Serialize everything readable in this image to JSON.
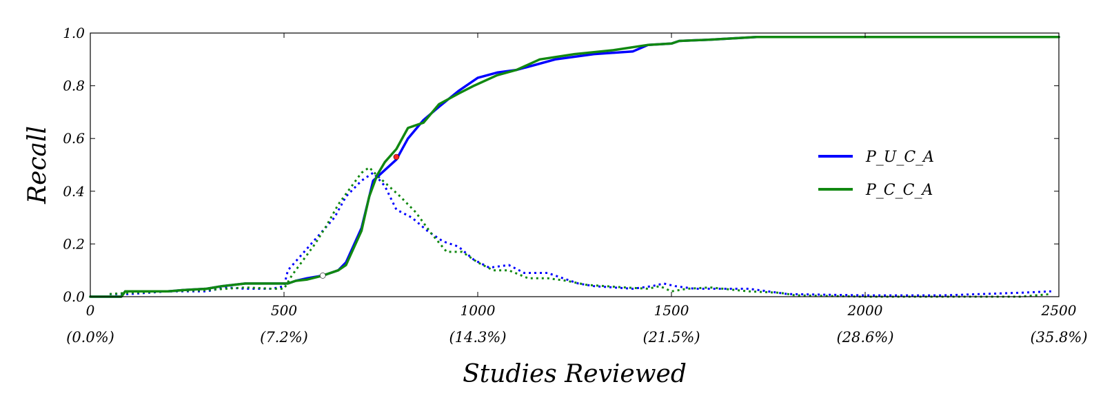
{
  "chart_data": {
    "type": "line",
    "xlabel": "Studies Reviewed",
    "ylabel": "Recall",
    "xlim": [
      0,
      2500
    ],
    "ylim": [
      0,
      1.0
    ],
    "x_ticks": [
      0,
      500,
      1000,
      1500,
      2000,
      2500
    ],
    "x_tick_labels": [
      "0",
      "500",
      "1000",
      "1500",
      "2000",
      "2500"
    ],
    "x_tick_percent_labels": [
      "(0.0%)",
      "(7.2%)",
      "(14.3%)",
      "(21.5%)",
      "(28.6%)",
      "(35.8%)"
    ],
    "y_ticks": [
      0.0,
      0.2,
      0.4,
      0.6,
      0.8,
      1.0
    ],
    "y_tick_labels": [
      "0.0",
      "0.2",
      "0.4",
      "0.6",
      "0.8",
      "1.0"
    ],
    "grid": false,
    "legend_position": "right",
    "series": [
      {
        "name": "P_U_C_A",
        "color": "#0000ff",
        "style": "solid",
        "points": [
          [
            0,
            0
          ],
          [
            80,
            0
          ],
          [
            90,
            0.02
          ],
          [
            200,
            0.02
          ],
          [
            240,
            0.025
          ],
          [
            300,
            0.03
          ],
          [
            340,
            0.04
          ],
          [
            400,
            0.05
          ],
          [
            510,
            0.05
          ],
          [
            530,
            0.06
          ],
          [
            560,
            0.07
          ],
          [
            600,
            0.08
          ],
          [
            640,
            0.1
          ],
          [
            660,
            0.13
          ],
          [
            700,
            0.26
          ],
          [
            730,
            0.44
          ],
          [
            760,
            0.48
          ],
          [
            790,
            0.52
          ],
          [
            820,
            0.6
          ],
          [
            860,
            0.67
          ],
          [
            900,
            0.72
          ],
          [
            950,
            0.78
          ],
          [
            1000,
            0.83
          ],
          [
            1050,
            0.85
          ],
          [
            1100,
            0.86
          ],
          [
            1150,
            0.88
          ],
          [
            1200,
            0.9
          ],
          [
            1300,
            0.92
          ],
          [
            1400,
            0.93
          ],
          [
            1440,
            0.955
          ],
          [
            1500,
            0.96
          ],
          [
            1520,
            0.97
          ],
          [
            1600,
            0.975
          ],
          [
            1720,
            0.985
          ],
          [
            2500,
            0.985
          ]
        ]
      },
      {
        "name": "P_C_C_A",
        "color": "#118811",
        "style": "solid",
        "points": [
          [
            0,
            0
          ],
          [
            80,
            0
          ],
          [
            90,
            0.02
          ],
          [
            200,
            0.02
          ],
          [
            240,
            0.025
          ],
          [
            300,
            0.03
          ],
          [
            340,
            0.04
          ],
          [
            400,
            0.05
          ],
          [
            510,
            0.05
          ],
          [
            530,
            0.06
          ],
          [
            560,
            0.065
          ],
          [
            600,
            0.08
          ],
          [
            640,
            0.1
          ],
          [
            660,
            0.12
          ],
          [
            700,
            0.25
          ],
          [
            720,
            0.38
          ],
          [
            740,
            0.46
          ],
          [
            760,
            0.51
          ],
          [
            790,
            0.56
          ],
          [
            820,
            0.64
          ],
          [
            860,
            0.66
          ],
          [
            900,
            0.73
          ],
          [
            950,
            0.77
          ],
          [
            990,
            0.8
          ],
          [
            1050,
            0.84
          ],
          [
            1100,
            0.86
          ],
          [
            1160,
            0.9
          ],
          [
            1250,
            0.92
          ],
          [
            1350,
            0.935
          ],
          [
            1440,
            0.955
          ],
          [
            1500,
            0.96
          ],
          [
            1520,
            0.97
          ],
          [
            1600,
            0.975
          ],
          [
            1720,
            0.985
          ],
          [
            2500,
            0.985
          ]
        ]
      },
      {
        "color": "#0000ff",
        "style": "dotted",
        "points": [
          [
            50,
            0.01
          ],
          [
            100,
            0.01
          ],
          [
            150,
            0.015
          ],
          [
            200,
            0.02
          ],
          [
            300,
            0.02
          ],
          [
            350,
            0.035
          ],
          [
            400,
            0.03
          ],
          [
            470,
            0.03
          ],
          [
            500,
            0.04
          ],
          [
            510,
            0.1
          ],
          [
            540,
            0.15
          ],
          [
            570,
            0.2
          ],
          [
            600,
            0.25
          ],
          [
            630,
            0.3
          ],
          [
            660,
            0.38
          ],
          [
            700,
            0.44
          ],
          [
            730,
            0.47
          ],
          [
            760,
            0.42
          ],
          [
            790,
            0.33
          ],
          [
            830,
            0.3
          ],
          [
            870,
            0.25
          ],
          [
            910,
            0.21
          ],
          [
            950,
            0.19
          ],
          [
            990,
            0.14
          ],
          [
            1030,
            0.11
          ],
          [
            1080,
            0.12
          ],
          [
            1120,
            0.09
          ],
          [
            1180,
            0.09
          ],
          [
            1220,
            0.07
          ],
          [
            1260,
            0.05
          ],
          [
            1300,
            0.04
          ],
          [
            1350,
            0.035
          ],
          [
            1400,
            0.03
          ],
          [
            1450,
            0.04
          ],
          [
            1480,
            0.05
          ],
          [
            1510,
            0.04
          ],
          [
            1560,
            0.03
          ],
          [
            1700,
            0.03
          ],
          [
            1800,
            0.01
          ],
          [
            2000,
            0.005
          ],
          [
            2200,
            0.005
          ],
          [
            2300,
            0.01
          ],
          [
            2400,
            0.015
          ],
          [
            2480,
            0.02
          ]
        ]
      },
      {
        "color": "#118811",
        "style": "dotted",
        "points": [
          [
            50,
            0.01
          ],
          [
            100,
            0.015
          ],
          [
            200,
            0.02
          ],
          [
            300,
            0.025
          ],
          [
            350,
            0.03
          ],
          [
            400,
            0.035
          ],
          [
            470,
            0.03
          ],
          [
            500,
            0.03
          ],
          [
            520,
            0.08
          ],
          [
            550,
            0.14
          ],
          [
            580,
            0.2
          ],
          [
            610,
            0.27
          ],
          [
            640,
            0.35
          ],
          [
            670,
            0.41
          ],
          [
            700,
            0.47
          ],
          [
            720,
            0.49
          ],
          [
            740,
            0.46
          ],
          [
            770,
            0.42
          ],
          [
            800,
            0.38
          ],
          [
            840,
            0.32
          ],
          [
            880,
            0.24
          ],
          [
            920,
            0.17
          ],
          [
            960,
            0.17
          ],
          [
            1000,
            0.13
          ],
          [
            1040,
            0.1
          ],
          [
            1080,
            0.1
          ],
          [
            1130,
            0.07
          ],
          [
            1180,
            0.07
          ],
          [
            1230,
            0.06
          ],
          [
            1280,
            0.045
          ],
          [
            1330,
            0.04
          ],
          [
            1380,
            0.035
          ],
          [
            1440,
            0.03
          ],
          [
            1470,
            0.04
          ],
          [
            1500,
            0.02
          ],
          [
            1540,
            0.03
          ],
          [
            1600,
            0.035
          ],
          [
            1700,
            0.02
          ],
          [
            1780,
            0.015
          ],
          [
            1820,
            0.005
          ],
          [
            2000,
            0
          ],
          [
            2200,
            0
          ],
          [
            2400,
            0
          ],
          [
            2480,
            0.01
          ]
        ]
      }
    ]
  },
  "annotations": [
    {
      "x": 790,
      "y": 0.53,
      "color": "#ff2222"
    },
    {
      "x": 600,
      "y": 0.08,
      "color": "#ffffff"
    }
  ]
}
